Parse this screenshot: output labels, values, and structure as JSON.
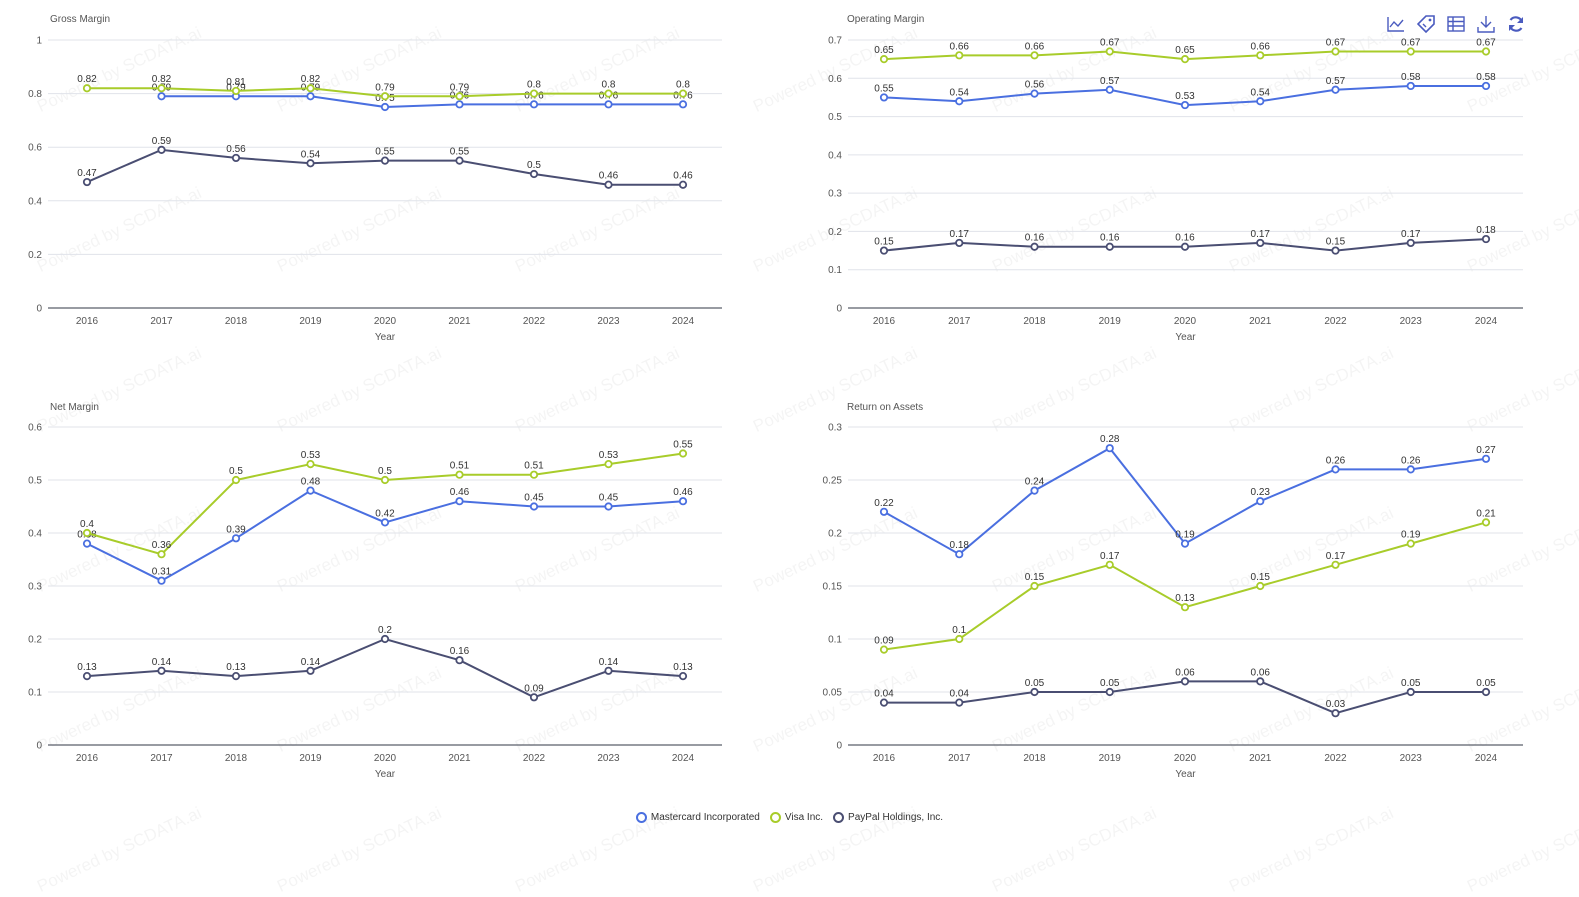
{
  "toolbox": {
    "icons": [
      "line-chart-icon",
      "tag-icon",
      "data-table-icon",
      "download-icon",
      "refresh-icon"
    ],
    "color": "#4a5bbf"
  },
  "legend": {
    "items": [
      {
        "name": "Mastercard Incorporated",
        "color": "#4a6fe0"
      },
      {
        "name": "Visa Inc.",
        "color": "#a8cc2a"
      },
      {
        "name": "PayPal Holdings, Inc.",
        "color": "#4a4e72"
      }
    ]
  },
  "watermark": "Powered by SCDATA.ai",
  "chart_data": [
    {
      "type": "line",
      "title": "Gross Margin",
      "xlabel": "Year",
      "ylabel": "",
      "categories": [
        "2016",
        "2017",
        "2018",
        "2019",
        "2020",
        "2021",
        "2022",
        "2023",
        "2024"
      ],
      "ylim": [
        0,
        1
      ],
      "yticks": [
        0,
        0.2,
        0.4,
        0.6,
        0.8,
        1
      ],
      "ytick_labels": [
        "0",
        "0.2",
        "0.4",
        "0.6",
        "0.8",
        "1"
      ],
      "grid": true,
      "series": [
        {
          "name": "Mastercard Incorporated",
          "color": "#4a6fe0",
          "values": [
            null,
            0.79,
            0.79,
            0.79,
            0.75,
            0.76,
            0.76,
            0.76,
            0.76
          ]
        },
        {
          "name": "Visa Inc.",
          "color": "#a8cc2a",
          "values": [
            0.82,
            0.82,
            0.81,
            0.82,
            0.79,
            0.79,
            0.8,
            0.8,
            0.8
          ]
        },
        {
          "name": "PayPal Holdings, Inc.",
          "color": "#4a4e72",
          "values": [
            0.47,
            0.59,
            0.56,
            0.54,
            0.55,
            0.55,
            0.5,
            0.46,
            0.46
          ]
        }
      ]
    },
    {
      "type": "line",
      "title": "Operating Margin",
      "xlabel": "Year",
      "ylabel": "",
      "categories": [
        "2016",
        "2017",
        "2018",
        "2019",
        "2020",
        "2021",
        "2022",
        "2023",
        "2024"
      ],
      "ylim": [
        0,
        0.7
      ],
      "yticks": [
        0,
        0.1,
        0.2,
        0.3,
        0.4,
        0.5,
        0.6,
        0.7
      ],
      "ytick_labels": [
        "0",
        "0.1",
        "0.2",
        "0.3",
        "0.4",
        "0.5",
        "0.6",
        "0.7"
      ],
      "grid": true,
      "series": [
        {
          "name": "Mastercard Incorporated",
          "color": "#4a6fe0",
          "values": [
            0.55,
            0.54,
            0.56,
            0.57,
            0.53,
            0.54,
            0.57,
            0.58,
            0.58
          ]
        },
        {
          "name": "Visa Inc.",
          "color": "#a8cc2a",
          "values": [
            0.65,
            0.66,
            0.66,
            0.67,
            0.65,
            0.66,
            0.67,
            0.67,
            0.67
          ]
        },
        {
          "name": "PayPal Holdings, Inc.",
          "color": "#4a4e72",
          "values": [
            0.15,
            0.17,
            0.16,
            0.16,
            0.16,
            0.17,
            0.15,
            0.17,
            0.18
          ]
        }
      ]
    },
    {
      "type": "line",
      "title": "Net Margin",
      "xlabel": "Year",
      "ylabel": "",
      "categories": [
        "2016",
        "2017",
        "2018",
        "2019",
        "2020",
        "2021",
        "2022",
        "2023",
        "2024"
      ],
      "ylim": [
        0,
        0.6
      ],
      "yticks": [
        0,
        0.1,
        0.2,
        0.3,
        0.4,
        0.5,
        0.6
      ],
      "ytick_labels": [
        "0",
        "0.1",
        "0.2",
        "0.3",
        "0.4",
        "0.5",
        "0.6"
      ],
      "grid": true,
      "series": [
        {
          "name": "Mastercard Incorporated",
          "color": "#4a6fe0",
          "values": [
            0.38,
            0.31,
            0.39,
            0.48,
            0.42,
            0.46,
            0.45,
            0.45,
            0.46
          ]
        },
        {
          "name": "Visa Inc.",
          "color": "#a8cc2a",
          "values": [
            0.4,
            0.36,
            0.5,
            0.53,
            0.5,
            0.51,
            0.51,
            0.53,
            0.55
          ]
        },
        {
          "name": "PayPal Holdings, Inc.",
          "color": "#4a4e72",
          "values": [
            0.13,
            0.14,
            0.13,
            0.14,
            0.2,
            0.16,
            0.09,
            0.14,
            0.13
          ]
        }
      ]
    },
    {
      "type": "line",
      "title": "Return on Assets",
      "xlabel": "Year",
      "ylabel": "",
      "categories": [
        "2016",
        "2017",
        "2018",
        "2019",
        "2020",
        "2021",
        "2022",
        "2023",
        "2024"
      ],
      "ylim": [
        0,
        0.3
      ],
      "yticks": [
        0,
        0.05,
        0.1,
        0.15,
        0.2,
        0.25,
        0.3
      ],
      "ytick_labels": [
        "0",
        "0.05",
        "0.1",
        "0.15",
        "0.2",
        "0.25",
        "0.3"
      ],
      "grid": true,
      "series": [
        {
          "name": "Mastercard Incorporated",
          "color": "#4a6fe0",
          "values": [
            0.22,
            0.18,
            0.24,
            0.28,
            0.19,
            0.23,
            0.26,
            0.26,
            0.27
          ]
        },
        {
          "name": "Visa Inc.",
          "color": "#a8cc2a",
          "values": [
            0.09,
            0.1,
            0.15,
            0.17,
            0.13,
            0.15,
            0.17,
            0.19,
            0.21
          ]
        },
        {
          "name": "PayPal Holdings, Inc.",
          "color": "#4a4e72",
          "values": [
            0.04,
            0.04,
            0.05,
            0.05,
            0.06,
            0.06,
            0.03,
            0.05,
            0.05
          ]
        }
      ]
    }
  ]
}
